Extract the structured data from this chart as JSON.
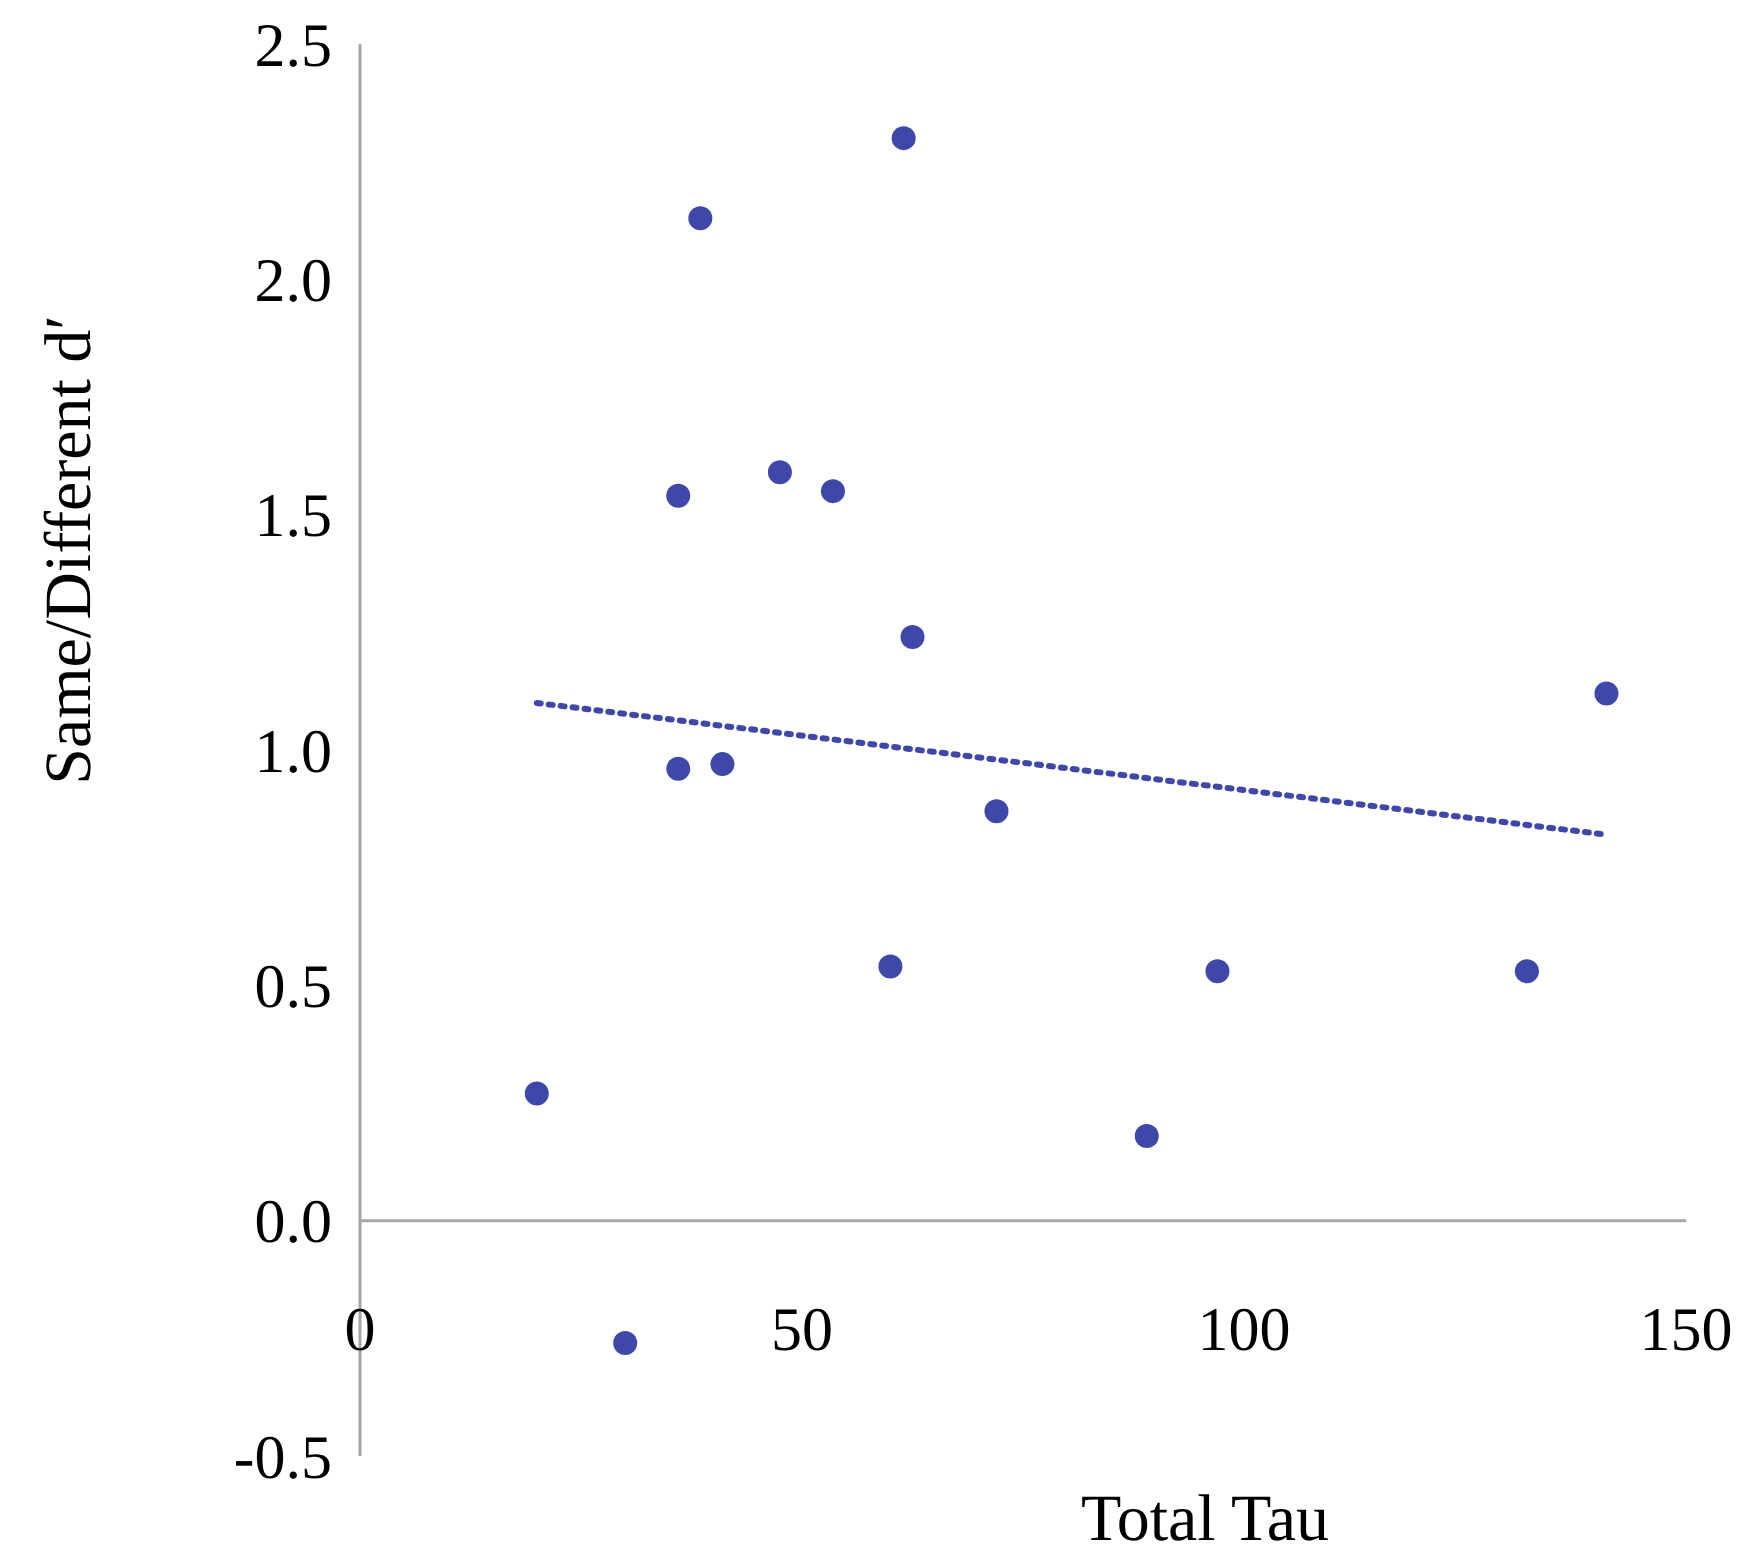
{
  "chart_data": {
    "type": "scatter",
    "xlabel": "Total Tau",
    "ylabel": "Same/Different d′",
    "xlim": [
      0,
      150
    ],
    "ylim": [
      -0.5,
      2.5
    ],
    "xticks": [
      0,
      50,
      100,
      150
    ],
    "yticks": [
      {
        "value": -0.5,
        "label": "-0.5"
      },
      {
        "value": 0,
        "label": "0.0"
      },
      {
        "value": 0.5,
        "label": "0.5"
      },
      {
        "value": 1,
        "label": "1.0"
      },
      {
        "value": 1.5,
        "label": "1.5"
      },
      {
        "value": 2,
        "label": "2.0"
      },
      {
        "value": 2.5,
        "label": "2.5"
      }
    ],
    "grid": false,
    "series": [
      {
        "color": "#3f48a8",
        "marker": "circle",
        "x": [
          20,
          30,
          36,
          36,
          38.5,
          41,
          47.5,
          53.5,
          60,
          61.5,
          62.5,
          72,
          89,
          97,
          132,
          141
        ],
        "values": [
          0.27,
          -0.26,
          1.54,
          0.96,
          2.13,
          0.97,
          1.59,
          1.55,
          0.54,
          2.3,
          1.24,
          0.87,
          0.18,
          0.53,
          0.53,
          1.12
        ]
      },
      {
        "type": "line",
        "color": "#3f48a8",
        "line_style": "dotted",
        "marker": "none",
        "x": [
          20,
          141
        ],
        "values": [
          1.1,
          0.82
        ]
      }
    ]
  }
}
